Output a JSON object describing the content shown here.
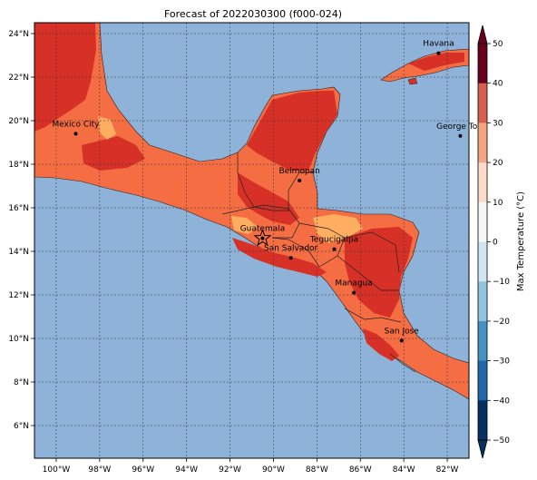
{
  "map": {
    "title": "Forecast of 2022030300 (f000-024)",
    "lon_ticks": [
      "100°W",
      "98°W",
      "96°W",
      "94°W",
      "92°W",
      "90°W",
      "88°W",
      "86°W",
      "84°W",
      "82°W"
    ],
    "lat_ticks": [
      "24°N",
      "22°N",
      "20°N",
      "18°N",
      "16°N",
      "14°N",
      "12°N",
      "10°N",
      "8°N",
      "6°N"
    ],
    "cities": [
      {
        "name": "Havana",
        "lon": -82.4,
        "lat": 23.1
      },
      {
        "name": "Mexico City",
        "lon": -99.1,
        "lat": 19.4
      },
      {
        "name": "George Tow",
        "lon": -81.4,
        "lat": 19.3
      },
      {
        "name": "Belmopan",
        "lon": -88.8,
        "lat": 17.25
      },
      {
        "name": "Guatemala",
        "lon": -90.5,
        "lat": 14.6,
        "marker": "star"
      },
      {
        "name": "San Salvador",
        "lon": -89.2,
        "lat": 13.7
      },
      {
        "name": "Tegucigalpa",
        "lon": -87.2,
        "lat": 14.1
      },
      {
        "name": "Managua",
        "lon": -86.3,
        "lat": 12.1
      },
      {
        "name": "San Jose",
        "lon": -84.1,
        "lat": 9.9
      }
    ],
    "extent": {
      "lon": [
        -101,
        -81
      ],
      "lat": [
        4.5,
        24.5
      ]
    }
  },
  "colorbar": {
    "label": "Max Temperature (°C)",
    "ticks": [
      "50",
      "40",
      "30",
      "20",
      "10",
      "0",
      "−10",
      "−20",
      "−30",
      "−40",
      "−50"
    ],
    "colors": [
      "#67001f",
      "#b2182b",
      "#d6604d",
      "#f4a582",
      "#fddbc7",
      "#f7f7f7",
      "#d1e5f0",
      "#92c5de",
      "#4393c3",
      "#2166ac",
      "#053061"
    ]
  },
  "colors": {
    "ocean": "#8fb3d8",
    "temp_20_30": "#f46d43",
    "temp_30_40": "#d73027",
    "temp_10_20": "#fdae61"
  }
}
